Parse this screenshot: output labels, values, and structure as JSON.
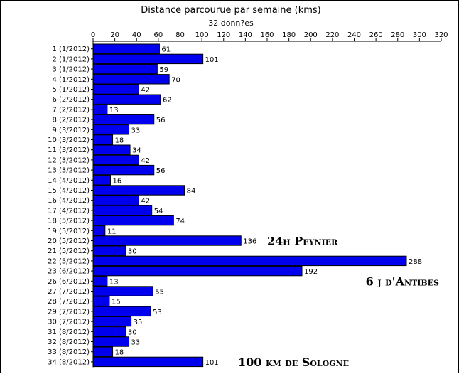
{
  "chart_data": {
    "type": "bar",
    "orientation": "horizontal",
    "title": "Distance parcourue par semaine (kms)",
    "subtitle": "32 donn?es",
    "xlim": [
      0,
      320
    ],
    "xticks": [
      0,
      20,
      40,
      60,
      80,
      100,
      120,
      140,
      160,
      180,
      200,
      220,
      240,
      260,
      280,
      300,
      320
    ],
    "x_axis_position": "top",
    "grid": false,
    "bar_color": "#0000ee",
    "bar_edge_color": "#000000",
    "categories": [
      "1 (1/2012)",
      "2 (1/2012)",
      "3 (1/2012)",
      "4 (1/2012)",
      "5 (1/2012)",
      "6 (2/2012)",
      "7 (2/2012)",
      "8 (2/2012)",
      "9 (3/2012)",
      "10 (3/2012)",
      "11 (3/2012)",
      "12 (3/2012)",
      "13 (3/2012)",
      "14 (4/2012)",
      "15 (4/2012)",
      "16 (4/2012)",
      "17 (4/2012)",
      "18 (5/2012)",
      "19 (5/2012)",
      "20 (5/2012)",
      "21 (5/2012)",
      "22 (5/2012)",
      "23 (6/2012)",
      "26 (6/2012)",
      "27 (7/2012)",
      "28 (7/2012)",
      "29 (7/2012)",
      "30 (7/2012)",
      "31 (8/2012)",
      "32 (8/2012)",
      "33 (8/2012)",
      "34 (8/2012)"
    ],
    "values": [
      61,
      101,
      59,
      70,
      42,
      62,
      13,
      56,
      33,
      18,
      34,
      42,
      56,
      16,
      84,
      42,
      54,
      74,
      11,
      136,
      30,
      288,
      192,
      13,
      55,
      15,
      53,
      35,
      30,
      33,
      18,
      101
    ],
    "annotations": [
      {
        "text": "24h Peynier",
        "category": "20 (5/2012)"
      },
      {
        "text": "6 j d'Antibes",
        "category": "26 (6/2012)"
      },
      {
        "text": "100 km de Sologne",
        "category": "34 (8/2012)"
      }
    ]
  }
}
